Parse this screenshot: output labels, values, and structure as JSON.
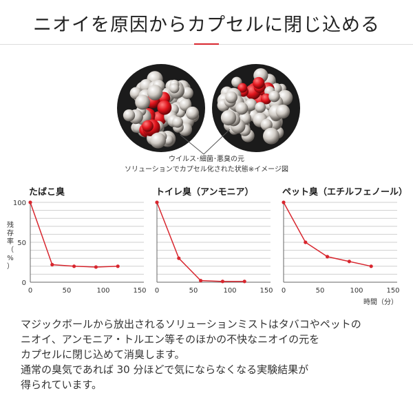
{
  "header": {
    "title": "ニオイを原因からカプセルに閉じ込める"
  },
  "illustration": {
    "caption_line1": "ウイルス･細菌･悪臭の元",
    "caption_line2": "ソリューションでカプセル化された状態※イメージ図"
  },
  "axes": {
    "ylabel_chars": [
      "残",
      "存",
      "率",
      "（",
      "%",
      "）"
    ],
    "xlabel": "時間（分）"
  },
  "chart_data": [
    {
      "type": "line",
      "title": "たばこ臭",
      "x": [
        0,
        30,
        60,
        90,
        120
      ],
      "series": [
        {
          "values": [
            100,
            22,
            20,
            19,
            20
          ]
        }
      ],
      "xlim": [
        0,
        150
      ],
      "ylim": [
        0,
        100
      ],
      "xticks": [
        0,
        50,
        100,
        150
      ],
      "yticks": [
        0,
        50,
        100
      ],
      "grid": true,
      "color": "#d8262e"
    },
    {
      "type": "line",
      "title": "トイレ臭（アンモニア）",
      "x": [
        0,
        30,
        60,
        90,
        120
      ],
      "series": [
        {
          "values": [
            100,
            30,
            2,
            1,
            1
          ]
        }
      ],
      "xlim": [
        0,
        150
      ],
      "ylim": [
        0,
        100
      ],
      "xticks": [
        0,
        50,
        100,
        150
      ],
      "yticks": [],
      "grid": true,
      "color": "#d8262e"
    },
    {
      "type": "line",
      "title": "ペット臭（エチルフェノール）",
      "x": [
        0,
        30,
        60,
        90,
        120
      ],
      "series": [
        {
          "values": [
            100,
            50,
            32,
            26,
            20
          ]
        }
      ],
      "xlim": [
        0,
        150
      ],
      "ylim": [
        0,
        100
      ],
      "xticks": [
        0,
        50,
        100,
        150
      ],
      "yticks": [],
      "grid": true,
      "color": "#d8262e"
    }
  ],
  "description": {
    "line1": "マジックボールから放出されるソリューションミストはタバコやペットの",
    "line2": "ニオイ、アンモニア・トルエン等そのほかの不快なニオイの元を",
    "line3": "カプセルに閉じ込めて消臭します。",
    "line4": "通常の臭気であれば 30 分ほどで気にならなくなる実験結果が",
    "line5": "得られています。"
  }
}
